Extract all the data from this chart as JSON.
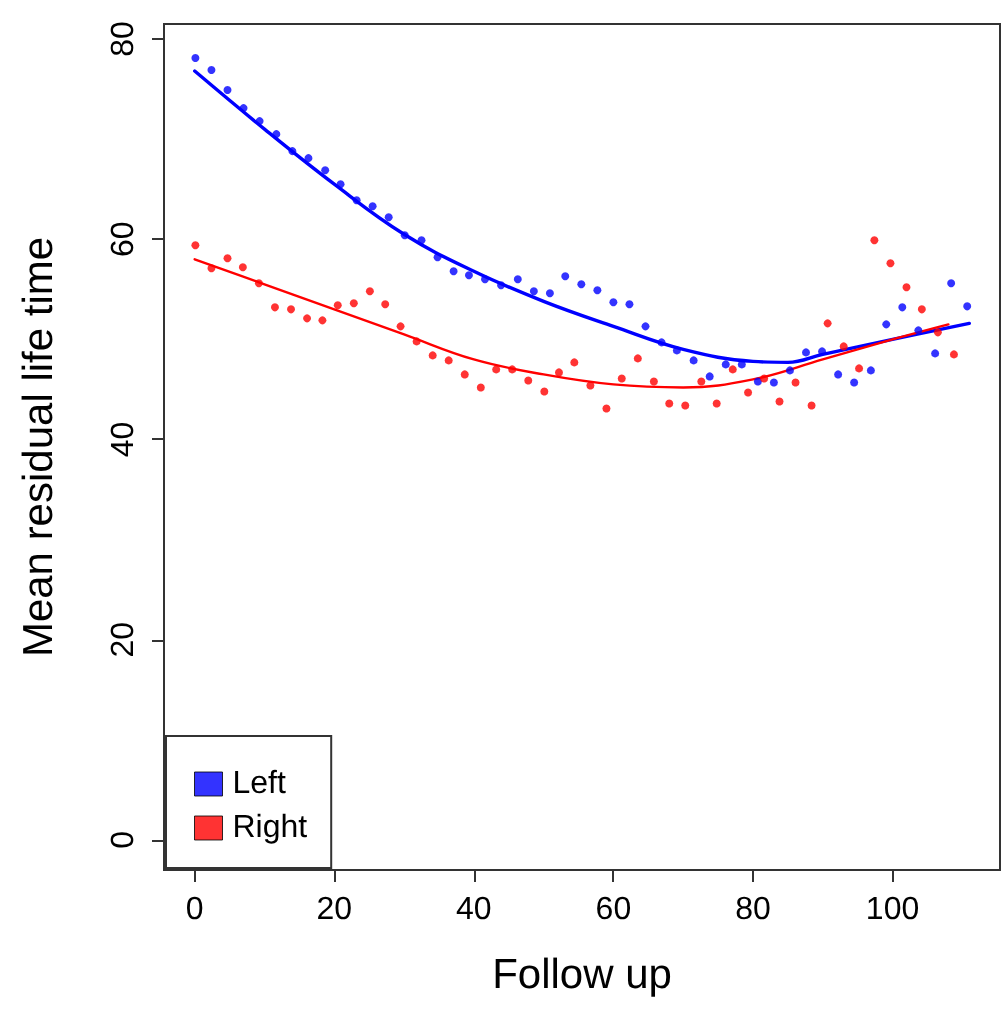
{
  "chart_data": {
    "type": "scatter",
    "xlabel": "Follow up",
    "ylabel": "Mean residual life time",
    "xlim": [
      -4.4,
      115.4
    ],
    "ylim": [
      -3,
      81.5
    ],
    "xticks": [
      0,
      20,
      40,
      60,
      80,
      100
    ],
    "yticks": [
      0,
      20,
      40,
      60,
      80
    ],
    "grid": false,
    "legend": "bottom left",
    "marker": "circle",
    "series": [
      {
        "name": "Left",
        "color": "#0000ff",
        "x": [
          0.1,
          2.4,
          4.7,
          7.0,
          9.3,
          11.7,
          14.0,
          16.3,
          18.7,
          20.9,
          23.2,
          25.5,
          27.8,
          30.1,
          32.5,
          34.8,
          37.1,
          39.3,
          41.6,
          43.9,
          46.3,
          48.6,
          50.9,
          53.1,
          55.4,
          57.7,
          60.0,
          62.3,
          64.6,
          66.9,
          69.1,
          71.5,
          73.8,
          76.1,
          78.4,
          80.7,
          83.0,
          85.3,
          87.6,
          89.9,
          92.2,
          94.5,
          96.9,
          99.1,
          101.4,
          103.7,
          106.1,
          108.4,
          110.7
        ],
        "values": [
          78.1,
          76.9,
          74.9,
          73.1,
          71.8,
          70.5,
          68.8,
          68.1,
          66.9,
          65.5,
          63.9,
          63.3,
          62.2,
          60.4,
          59.9,
          58.2,
          56.8,
          56.4,
          56.0,
          55.4,
          56.0,
          54.8,
          54.6,
          56.3,
          55.5,
          54.9,
          53.7,
          53.5,
          51.3,
          49.7,
          48.9,
          47.9,
          46.3,
          47.5,
          47.5,
          45.8,
          45.7,
          46.9,
          48.7,
          48.8,
          46.5,
          45.7,
          46.9,
          51.5,
          53.2,
          50.9,
          48.6,
          55.6,
          53.3
        ]
      },
      {
        "name": "Right",
        "color": "#ff0000",
        "x": [
          0.1,
          2.4,
          4.7,
          6.9,
          9.2,
          11.5,
          13.8,
          16.1,
          18.3,
          20.5,
          22.8,
          25.1,
          27.3,
          29.5,
          31.8,
          34.1,
          36.4,
          38.7,
          41.0,
          43.2,
          45.5,
          47.8,
          50.1,
          52.2,
          54.4,
          56.7,
          59.0,
          61.2,
          63.5,
          65.8,
          68.0,
          70.3,
          72.6,
          74.8,
          77.1,
          79.3,
          81.6,
          83.8,
          86.1,
          88.4,
          90.7,
          93.0,
          95.2,
          97.4,
          99.7,
          102.0,
          104.2,
          106.5,
          108.8
        ],
        "values": [
          59.4,
          57.1,
          58.1,
          57.2,
          55.6,
          53.2,
          53.0,
          52.1,
          51.9,
          53.4,
          53.6,
          54.8,
          53.5,
          51.3,
          49.8,
          48.4,
          47.9,
          46.5,
          45.2,
          47.0,
          47.0,
          45.9,
          44.8,
          46.7,
          47.7,
          45.4,
          43.1,
          46.1,
          48.1,
          45.8,
          43.6,
          43.4,
          45.8,
          43.6,
          47.0,
          44.7,
          46.1,
          43.8,
          45.7,
          43.4,
          51.6,
          49.3,
          47.1,
          59.9,
          57.6,
          55.2,
          53.0,
          50.7,
          48.5
        ]
      },
      {
        "type": "line",
        "color": "#0000ff",
        "marker": "none",
        "x": [
          0,
          10,
          20,
          30,
          40,
          50,
          60,
          70,
          80,
          85,
          90,
          100,
          111
        ],
        "values": [
          76.8,
          71,
          65.5,
          60.5,
          56.8,
          53.8,
          51.3,
          49,
          47.8,
          47.7,
          48.5,
          50,
          51.6
        ]
      },
      {
        "type": "line",
        "color": "#ff0000",
        "marker": "none",
        "x": [
          0,
          10,
          20,
          30,
          40,
          50,
          60,
          70,
          80,
          90,
          100,
          108
        ],
        "values": [
          58,
          55.5,
          53,
          50.5,
          48,
          46.5,
          45.5,
          45.2,
          46,
          48,
          50,
          51.5
        ]
      }
    ]
  }
}
